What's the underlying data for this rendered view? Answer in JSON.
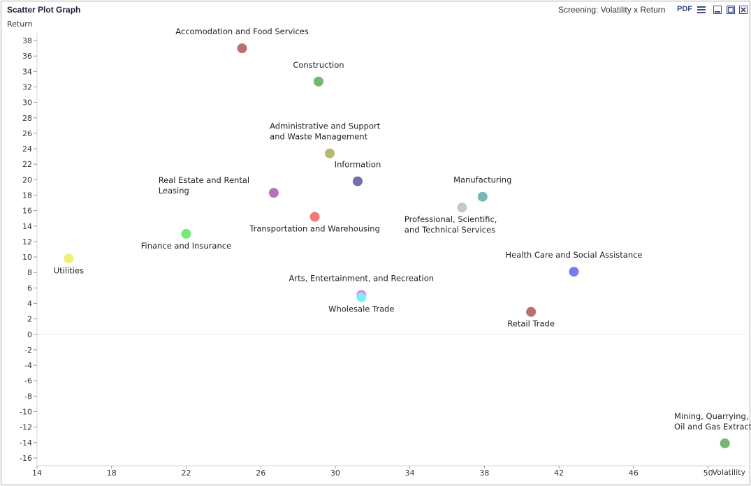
{
  "window": {
    "title": "Scatter Plot Graph",
    "subtitle": "Screening: Volatility x Return",
    "pdf_label": "PDF",
    "icons": [
      "menu-icon",
      "minimize-icon",
      "maximize-icon",
      "close-icon"
    ]
  },
  "chart_data": {
    "type": "scatter",
    "xlabel": "Volatility",
    "ylabel": "Return",
    "xlim": [
      14,
      52
    ],
    "ylim": [
      -17,
      39
    ],
    "xticks": [
      14,
      18,
      22,
      26,
      30,
      34,
      38,
      42,
      46,
      50
    ],
    "yticks": [
      -16,
      -14,
      -12,
      -10,
      -8,
      -6,
      -4,
      -2,
      0,
      2,
      4,
      6,
      8,
      10,
      12,
      14,
      16,
      18,
      20,
      22,
      24,
      26,
      28,
      30,
      32,
      34,
      36,
      38
    ],
    "grid": false,
    "legend": "none",
    "points": [
      {
        "label": "Accomodation and Food Services",
        "x": 25.0,
        "y": 37.0,
        "color": "#b87070",
        "label_pos": "above"
      },
      {
        "label": "Construction",
        "x": 29.1,
        "y": 32.7,
        "color": "#72b872",
        "label_pos": "above"
      },
      {
        "label": "Administrative and Support\nand Waste Management",
        "x": 29.7,
        "y": 23.4,
        "color": "#b8b872",
        "label_pos": "above"
      },
      {
        "label": "Information",
        "x": 31.2,
        "y": 19.8,
        "color": "#7070a8",
        "label_pos": "above"
      },
      {
        "label": "Real Estate and Rental\nLeasing",
        "x": 26.7,
        "y": 18.3,
        "color": "#b870b8",
        "label_pos": "above-left"
      },
      {
        "label": "Transportation and Warehousing",
        "x": 28.9,
        "y": 15.2,
        "color": "#f07878",
        "label_pos": "below"
      },
      {
        "label": "Manufacturing",
        "x": 37.9,
        "y": 17.8,
        "color": "#78b8b8",
        "label_pos": "above"
      },
      {
        "label": "Professional, Scientific,\nand Technical Services",
        "x": 36.8,
        "y": 16.4,
        "color": "#c8c8c8",
        "label_pos": "below"
      },
      {
        "label": "Finance and Insurance",
        "x": 22.0,
        "y": 13.0,
        "color": "#78e878",
        "label_pos": "below"
      },
      {
        "label": "Utilities",
        "x": 15.7,
        "y": 9.8,
        "color": "#f0f078",
        "label_pos": "below"
      },
      {
        "label": "Health Care and Social Assistance",
        "x": 42.8,
        "y": 8.1,
        "color": "#7878f0",
        "label_pos": "above"
      },
      {
        "label": "Arts, Entertainment, and Recreation",
        "x": 31.4,
        "y": 5.1,
        "color": "#f078f0",
        "label_pos": "above"
      },
      {
        "label": "Wholesale Trade",
        "x": 31.4,
        "y": 4.8,
        "color": "#78f0f0",
        "label_pos": "below"
      },
      {
        "label": "Retail Trade",
        "x": 40.5,
        "y": 2.9,
        "color": "#b87070",
        "label_pos": "below"
      },
      {
        "label": "Mining, Quarrying, and\nOil and Gas Extraction",
        "x": 50.9,
        "y": -14.1,
        "color": "#72b872",
        "label_pos": "above"
      }
    ]
  }
}
